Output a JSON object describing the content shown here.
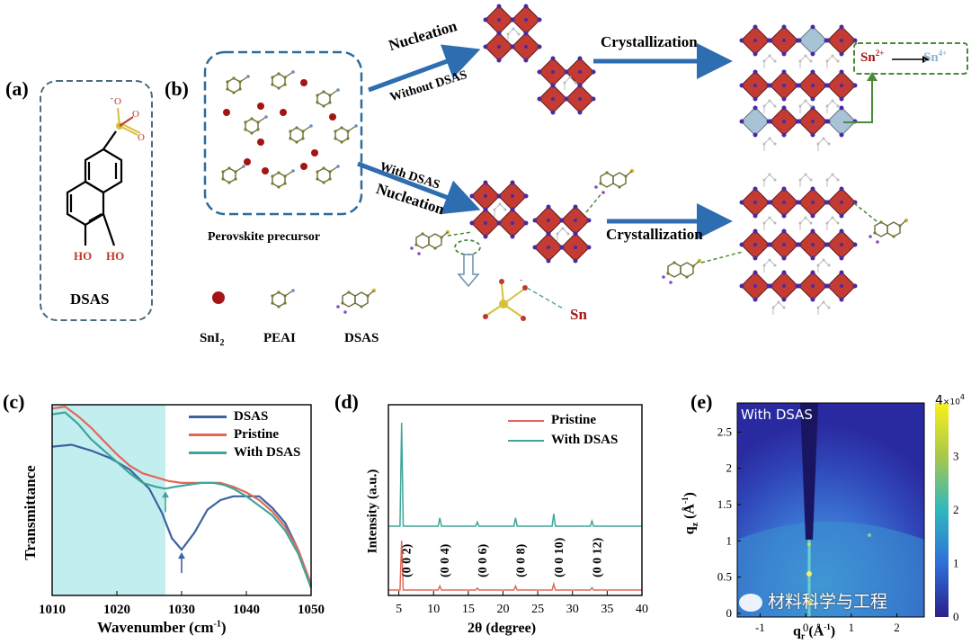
{
  "panel_labels": {
    "a": "(a)",
    "b": "(b)",
    "c": "(c)",
    "d": "(d)",
    "e": "(e)"
  },
  "panel_a": {
    "molecule_name": "DSAS",
    "oh1": "HO",
    "oh2": "HO"
  },
  "panel_b": {
    "precursor_caption": "Perovskite precursor",
    "top_arrow_label_1": "Nucleation",
    "top_arrow_label_2": "Without DSAS",
    "top_crystallization": "Crystallization",
    "sn_oxidation_from": "Sn",
    "sn_oxidation_from_sup": "2+",
    "sn_oxidation_to": "Sn",
    "sn_oxidation_to_sup": "4+",
    "bottom_arrow_label_1": "With DSAS",
    "bottom_arrow_label_2": "Nucleation",
    "bottom_crystallization": "Crystallization",
    "sn_label": "Sn",
    "legend": [
      {
        "name": "SnI",
        "sub": "2"
      },
      {
        "name": "PEAI",
        "sub": ""
      },
      {
        "name": "DSAS",
        "sub": ""
      }
    ]
  },
  "chart_data": [
    {
      "type": "line",
      "panel": "c",
      "xlabel": "Wavenumber (cm",
      "xlabel_sup": "-1",
      "xlabel_end": ")",
      "ylabel": "Transmittance",
      "xlim": [
        1010,
        1050
      ],
      "xticks": [
        "1010",
        "1020",
        "1030",
        "1040",
        "1050"
      ],
      "shaded_region": [
        1010,
        1027.5
      ],
      "series": [
        {
          "name": "DSAS",
          "color": "#3b62a0",
          "x": [
            1010,
            1013,
            1016,
            1019,
            1022,
            1025,
            1027,
            1028.5,
            1030,
            1032,
            1034,
            1036,
            1038,
            1040,
            1042,
            1044,
            1046,
            1048,
            1050
          ],
          "y": [
            0.78,
            0.79,
            0.76,
            0.72,
            0.66,
            0.56,
            0.43,
            0.3,
            0.24,
            0.33,
            0.45,
            0.5,
            0.52,
            0.52,
            0.52,
            0.46,
            0.38,
            0.24,
            0.05
          ]
        },
        {
          "name": "Pristine",
          "color": "#e0685a",
          "x": [
            1010,
            1012,
            1014,
            1016,
            1018,
            1020,
            1022,
            1024,
            1026,
            1028,
            1030,
            1032,
            1034,
            1036,
            1038,
            1040,
            1042,
            1044,
            1046,
            1048,
            1050
          ],
          "y": [
            0.98,
            0.99,
            0.94,
            0.88,
            0.81,
            0.74,
            0.68,
            0.64,
            0.62,
            0.6,
            0.59,
            0.59,
            0.59,
            0.59,
            0.57,
            0.54,
            0.5,
            0.44,
            0.36,
            0.24,
            0.06
          ]
        },
        {
          "name": "With DSAS",
          "color": "#3ea699",
          "x": [
            1010,
            1012,
            1014,
            1016,
            1018,
            1020,
            1022,
            1024,
            1026,
            1027.5,
            1029,
            1031,
            1033,
            1035,
            1036.5,
            1038,
            1040,
            1042,
            1044,
            1046,
            1048,
            1050
          ],
          "y": [
            0.95,
            0.96,
            0.9,
            0.82,
            0.76,
            0.7,
            0.64,
            0.59,
            0.57,
            0.56,
            0.57,
            0.58,
            0.59,
            0.59,
            0.58,
            0.56,
            0.52,
            0.47,
            0.42,
            0.34,
            0.22,
            0.04
          ]
        }
      ],
      "arrows": [
        {
          "x": 1027.5,
          "series": "With DSAS"
        },
        {
          "x": 1030,
          "series": "DSAS"
        }
      ]
    },
    {
      "type": "line",
      "panel": "d",
      "xlabel": "2θ (degree)",
      "ylabel": "Intensity (a.u.)",
      "xlim": [
        3.5,
        40
      ],
      "xticks": [
        "5",
        "10",
        "15",
        "20",
        "25",
        "30",
        "35",
        "40"
      ],
      "series": [
        {
          "name": "Pristine",
          "color": "#e0685a",
          "peaks": [
            [
              5.4,
              1.0
            ],
            [
              10.9,
              0.08
            ],
            [
              16.3,
              0.04
            ],
            [
              21.8,
              0.08
            ],
            [
              27.3,
              0.12
            ],
            [
              32.8,
              0.05
            ]
          ]
        },
        {
          "name": "With DSAS",
          "color": "#3ea699",
          "peaks": [
            [
              5.4,
              1.0
            ],
            [
              10.9,
              0.08
            ],
            [
              16.3,
              0.04
            ],
            [
              21.8,
              0.08
            ],
            [
              27.3,
              0.12
            ],
            [
              32.8,
              0.05
            ]
          ]
        }
      ],
      "peak_labels": [
        "(0 0 2)",
        "(0 0 4)",
        "(0 0 6)",
        "(0 0 8)",
        "(0 0 10)",
        "(0 0 12)"
      ]
    },
    {
      "type": "heatmap",
      "panel": "e",
      "annotation": "With DSAS",
      "xlabel": "q",
      "xlabel_sub": "r",
      "xlabel_unit": " (Å",
      "xlabel_unit_sup": "-1",
      "xlabel_unit_end": ")",
      "ylabel": "q",
      "ylabel_sub": "z",
      "ylabel_unit": " (Å",
      "ylabel_unit_sup": "-1",
      "ylabel_unit_end": ")",
      "xticks": [
        "-1",
        "0",
        "1",
        "2"
      ],
      "yticks": [
        "0",
        "0.5",
        "1",
        "1.5",
        "2",
        "2.5"
      ],
      "colorbar_ticks": [
        "0",
        "1",
        "2",
        "3",
        "4"
      ],
      "colorbar_scale": "×10",
      "colorbar_scale_sup": "4"
    }
  ],
  "watermark": "材料科学与工程"
}
